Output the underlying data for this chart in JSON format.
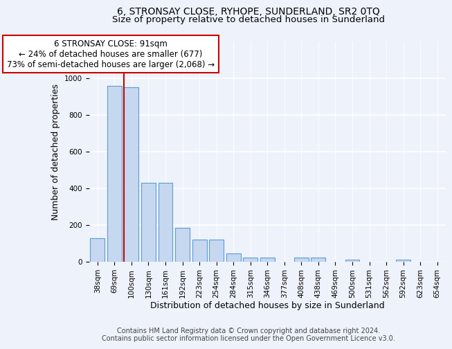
{
  "title": "6, STRONSAY CLOSE, RYHOPE, SUNDERLAND, SR2 0TQ",
  "subtitle": "Size of property relative to detached houses in Sunderland",
  "xlabel": "Distribution of detached houses by size in Sunderland",
  "ylabel": "Number of detached properties",
  "categories": [
    "38sqm",
    "69sqm",
    "100sqm",
    "130sqm",
    "161sqm",
    "192sqm",
    "223sqm",
    "254sqm",
    "284sqm",
    "315sqm",
    "346sqm",
    "377sqm",
    "408sqm",
    "438sqm",
    "469sqm",
    "500sqm",
    "531sqm",
    "562sqm",
    "592sqm",
    "623sqm",
    "654sqm"
  ],
  "values": [
    125,
    955,
    950,
    430,
    430,
    185,
    120,
    120,
    45,
    20,
    20,
    0,
    20,
    20,
    0,
    10,
    0,
    0,
    10,
    0,
    0
  ],
  "bar_color": "#c5d8f0",
  "bar_edge_color": "#5b9bd5",
  "ylim": [
    0,
    1200
  ],
  "yticks": [
    0,
    200,
    400,
    600,
    800,
    1000,
    1200
  ],
  "property_bar_index": 2,
  "property_line_label": "6 STRONSAY CLOSE: 91sqm",
  "annotation_line1": "← 24% of detached houses are smaller (677)",
  "annotation_line2": "73% of semi-detached houses are larger (2,068) →",
  "annotation_box_facecolor": "#ffffff",
  "annotation_box_edgecolor": "#cc0000",
  "vline_color": "#cc0000",
  "footer_line1": "Contains HM Land Registry data © Crown copyright and database right 2024.",
  "footer_line2": "Contains public sector information licensed under the Open Government Licence v3.0.",
  "bg_color": "#eef2fb",
  "grid_color": "#ffffff",
  "title_fontsize": 10,
  "subtitle_fontsize": 9.5,
  "axis_label_fontsize": 9,
  "tick_fontsize": 7.5,
  "annotation_fontsize": 8.5,
  "footer_fontsize": 7
}
